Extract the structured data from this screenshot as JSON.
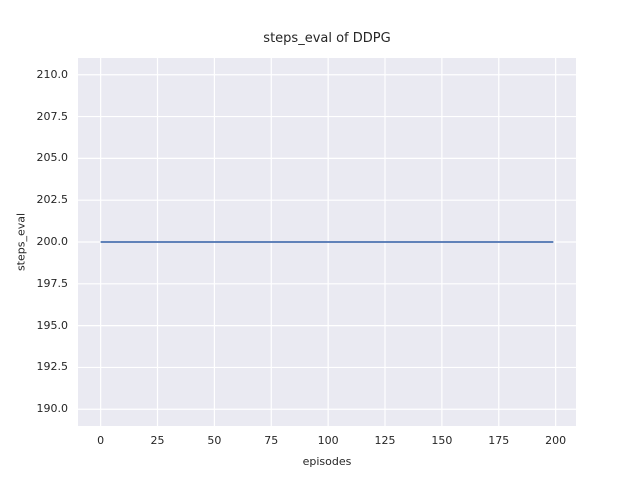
{
  "chart_data": {
    "type": "line",
    "title": "steps_eval of DDPG",
    "xlabel": "episodes",
    "ylabel": "steps_eval",
    "xlim": [
      -9.95,
      208.95
    ],
    "ylim": [
      189.0,
      211.0
    ],
    "grid": true,
    "legend_position": "none",
    "xticks": [
      {
        "value": 0,
        "label": "0"
      },
      {
        "value": 25,
        "label": "25"
      },
      {
        "value": 50,
        "label": "50"
      },
      {
        "value": 75,
        "label": "75"
      },
      {
        "value": 100,
        "label": "100"
      },
      {
        "value": 125,
        "label": "125"
      },
      {
        "value": 150,
        "label": "150"
      },
      {
        "value": 175,
        "label": "175"
      },
      {
        "value": 200,
        "label": "200"
      }
    ],
    "yticks": [
      {
        "value": 190.0,
        "label": "190.0"
      },
      {
        "value": 192.5,
        "label": "192.5"
      },
      {
        "value": 195.0,
        "label": "195.0"
      },
      {
        "value": 197.5,
        "label": "197.5"
      },
      {
        "value": 200.0,
        "label": "200.0"
      },
      {
        "value": 202.5,
        "label": "202.5"
      },
      {
        "value": 205.0,
        "label": "205.0"
      },
      {
        "value": 207.5,
        "label": "207.5"
      },
      {
        "value": 210.0,
        "label": "210.0"
      }
    ],
    "series": [
      {
        "name": "DDPG",
        "color": "#4C72B0",
        "constant_y": 200.0,
        "points": [
          [
            0,
            200.0
          ],
          [
            199,
            200.0
          ]
        ]
      }
    ],
    "colors": {
      "figure_background": "#FFFFFF",
      "plot_background": "#EAEAF2",
      "grid": "#FFFFFF",
      "text": "#262626",
      "line": "#4C72B0"
    }
  }
}
